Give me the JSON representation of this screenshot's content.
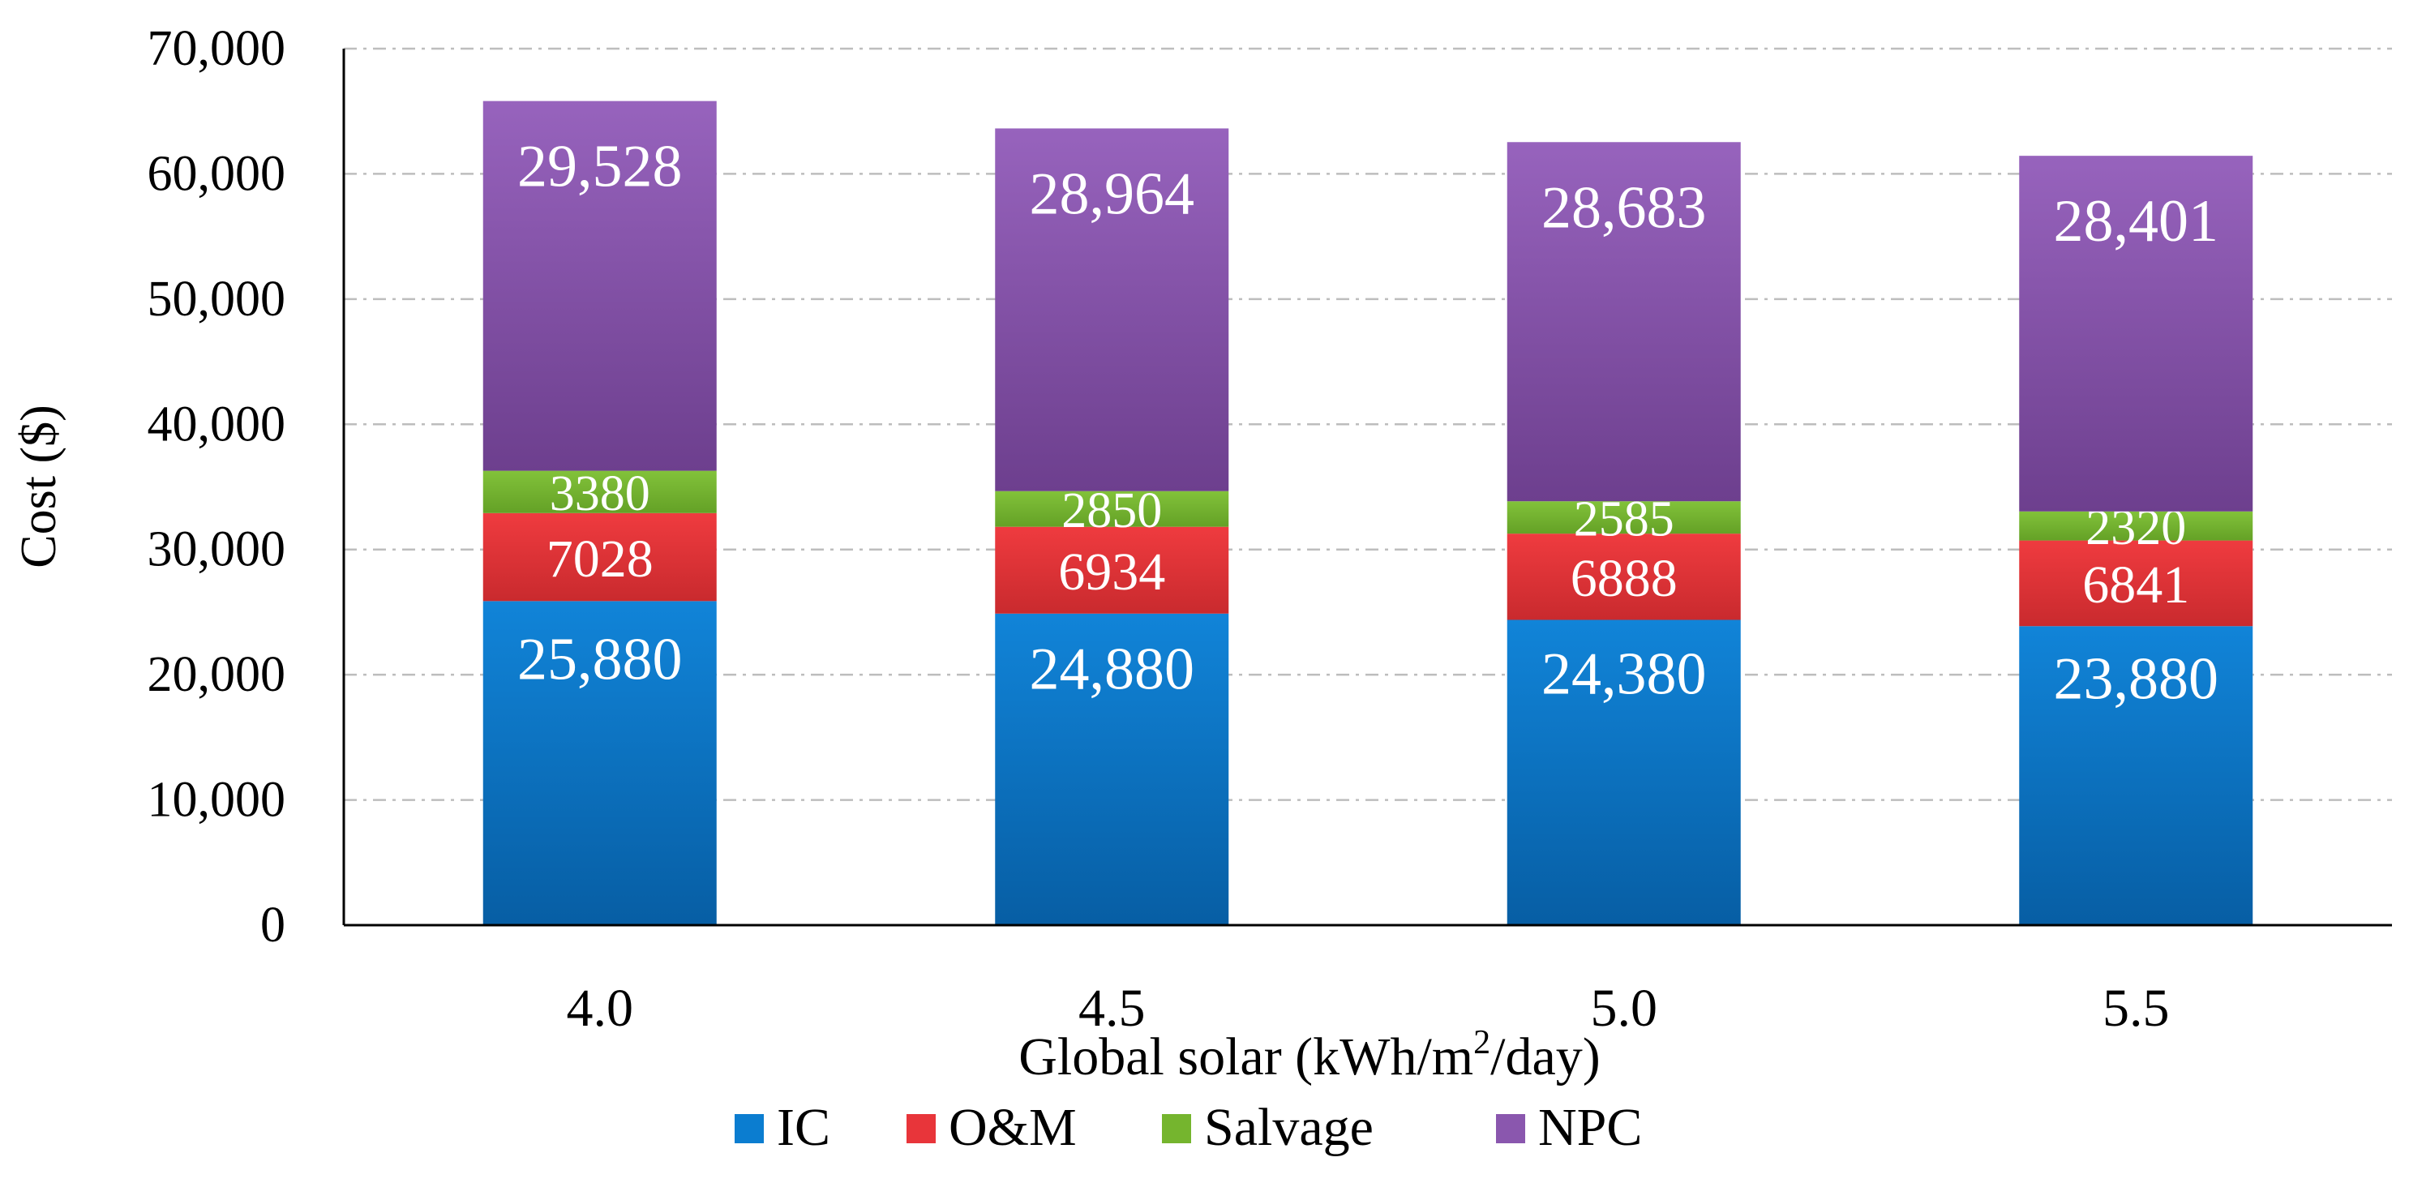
{
  "chart_data": {
    "type": "bar",
    "stacked": true,
    "categories": [
      "4.0",
      "4.5",
      "5.0",
      "5.5"
    ],
    "series": [
      {
        "name": "IC",
        "color": "#0b7dd0",
        "values": [
          25880,
          24880,
          24380,
          23880
        ],
        "labels": [
          "25,880",
          "24,880",
          "24,380",
          "23,880"
        ]
      },
      {
        "name": "O&M",
        "color": "#e8353a",
        "values": [
          7028,
          6934,
          6888,
          6841
        ],
        "labels": [
          "7028",
          "6934",
          "6888",
          "6841"
        ]
      },
      {
        "name": "Salvage",
        "color": "#75b52e",
        "values": [
          3380,
          2850,
          2585,
          2320
        ],
        "labels": [
          "3380",
          "2850",
          "2585",
          "2320"
        ]
      },
      {
        "name": "NPC",
        "color": "#8a57ae",
        "values": [
          29528,
          28964,
          28683,
          28401
        ],
        "labels": [
          "29,528",
          "28,964",
          "28,683",
          "28,401"
        ]
      }
    ],
    "ylabel": "Cost ($)",
    "xlabel_main": "Global solar (kWh/m",
    "xlabel_sup": "2",
    "xlabel_end": "/day)",
    "ylim": [
      0,
      70000
    ],
    "yticks": [
      0,
      10000,
      20000,
      30000,
      40000,
      50000,
      60000,
      70000
    ],
    "ytick_labels": [
      "0",
      "10,000",
      "20,000",
      "30,000",
      "40,000",
      "50,000",
      "60,000",
      "70,000"
    ],
    "grid": "horizontal-dashed",
    "legend_position": "bottom"
  }
}
